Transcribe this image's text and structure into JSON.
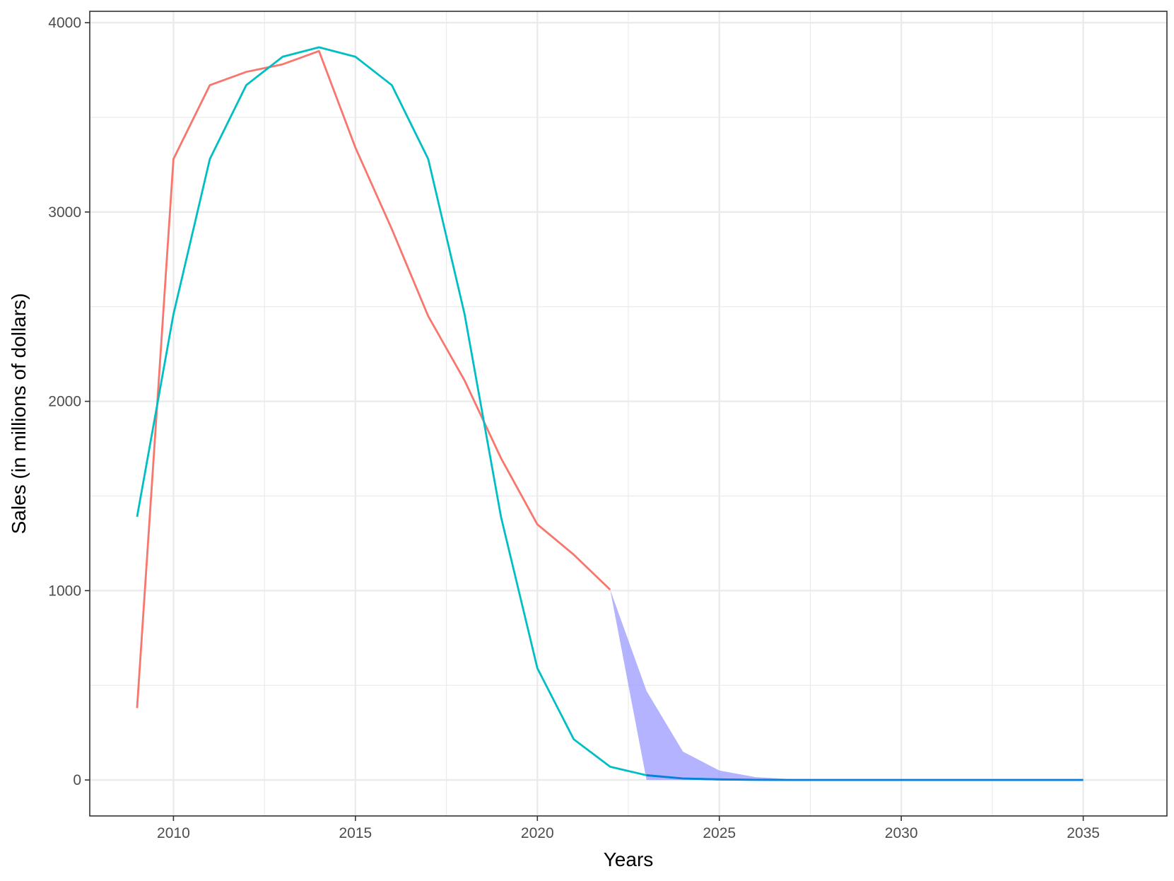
{
  "chart_data": {
    "type": "line",
    "title": "",
    "xlabel": "Years",
    "ylabel": "Sales (in millions of dollars)",
    "xlim": [
      2007.7,
      2037.3
    ],
    "ylim": [
      -190,
      4060
    ],
    "x_ticks": [
      2010,
      2015,
      2020,
      2025,
      2030,
      2035
    ],
    "x_tick_labels": [
      "2010",
      "2015",
      "2020",
      "2025",
      "2030",
      "2035"
    ],
    "y_ticks": [
      0,
      1000,
      2000,
      3000,
      4000
    ],
    "y_tick_labels": [
      "0",
      "1000",
      "2000",
      "3000",
      "4000"
    ],
    "grid": true,
    "legend": "none",
    "colors": {
      "series_red": "#F8766D",
      "series_teal": "#00BFC4",
      "ribbon": "#9999FF",
      "forecast_line": "#0A7FD9",
      "grid": "#EBEBEB",
      "panel_border": "#333333"
    },
    "series": [
      {
        "x": [
          2009,
          2010,
          2011,
          2012,
          2013,
          2014,
          2015,
          2016,
          2017,
          2018,
          2019,
          2020,
          2021,
          2022
        ],
        "values": [
          380,
          3280,
          3670,
          3740,
          3780,
          3850,
          3340,
          2910,
          2450,
          2110,
          1700,
          1350,
          1190,
          1005
        ]
      },
      {
        "x": [
          2009,
          2010,
          2011,
          2012,
          2013,
          2014,
          2015,
          2016,
          2017,
          2018,
          2019,
          2020,
          2021,
          2022,
          2023,
          2024,
          2025,
          2026,
          2027,
          2028,
          2029,
          2030,
          2031,
          2032,
          2033,
          2034,
          2035
        ],
        "values": [
          1390,
          2460,
          3280,
          3670,
          3820,
          3870,
          3820,
          3670,
          3280,
          2460,
          1390,
          590,
          215,
          70,
          25,
          8,
          3,
          1,
          0,
          0,
          0,
          0,
          0,
          0,
          0,
          0,
          0
        ]
      }
    ],
    "forecast_band": {
      "x": [
        2022,
        2023,
        2024,
        2025,
        2026,
        2027,
        2028
      ],
      "lower": [
        1005,
        0,
        0,
        0,
        0,
        0,
        0
      ],
      "upper": [
        1005,
        470,
        150,
        50,
        15,
        4,
        0
      ]
    }
  }
}
